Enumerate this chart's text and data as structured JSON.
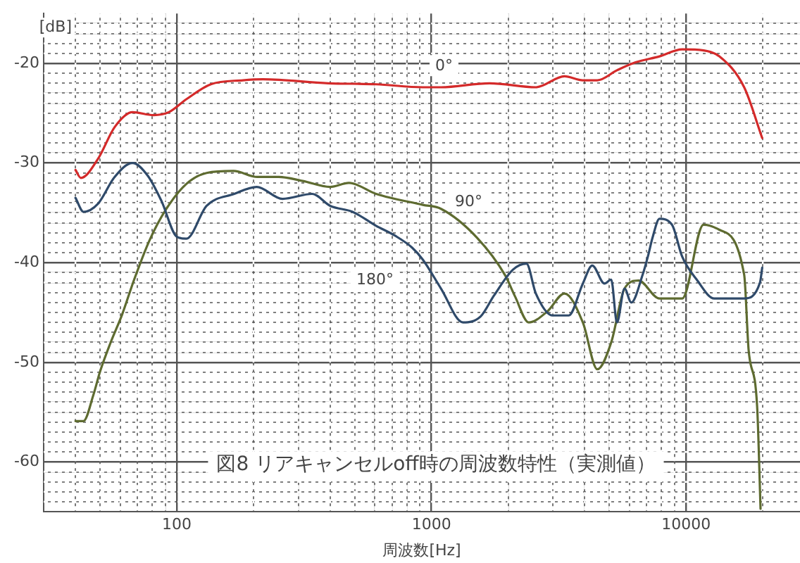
{
  "chart_data": {
    "type": "line",
    "title": "図8 リアキャンセルoff時の周波数特性（実測値）",
    "xlabel": "周波数[Hz]",
    "ylabel": "[dB]",
    "log": "x",
    "grid": true,
    "legend": false,
    "marker": "none",
    "line_style": "solid",
    "xlim": [
      30,
      28000
    ],
    "xticks": [
      {
        "value": 40,
        "label": null
      },
      {
        "value": 50,
        "label": null
      },
      {
        "value": 60,
        "label": null
      },
      {
        "value": 70,
        "label": null
      },
      {
        "value": 80,
        "label": null
      },
      {
        "value": 90,
        "label": null
      },
      100,
      {
        "value": 200,
        "label": null
      },
      {
        "value": 300,
        "label": null
      },
      {
        "value": 400,
        "label": null
      },
      {
        "value": 500,
        "label": null
      },
      {
        "value": 600,
        "label": null
      },
      {
        "value": 700,
        "label": null
      },
      {
        "value": 800,
        "label": null
      },
      {
        "value": 900,
        "label": null
      },
      1000,
      {
        "value": 2000,
        "label": null
      },
      {
        "value": 3000,
        "label": null
      },
      {
        "value": 4000,
        "label": null
      },
      {
        "value": 5000,
        "label": null
      },
      {
        "value": 6000,
        "label": null
      },
      {
        "value": 7000,
        "label": null
      },
      {
        "value": 8000,
        "label": null
      },
      {
        "value": 9000,
        "label": null
      },
      10000,
      {
        "value": 20000,
        "label": null
      }
    ],
    "ylim": [
      -65,
      -15
    ],
    "yticks": [
      {
        "value": -64,
        "label": null
      },
      {
        "value": -63,
        "label": null
      },
      {
        "value": -62,
        "label": null
      },
      {
        "value": -61,
        "label": null
      },
      -60,
      {
        "value": -59,
        "label": null
      },
      {
        "value": -58,
        "label": null
      },
      {
        "value": -57,
        "label": null
      },
      {
        "value": -56,
        "label": null
      },
      {
        "value": -55,
        "label": null
      },
      {
        "value": -54,
        "label": null
      },
      {
        "value": -53,
        "label": null
      },
      {
        "value": -52,
        "label": null
      },
      {
        "value": -51,
        "label": null
      },
      -50,
      {
        "value": -49,
        "label": null
      },
      {
        "value": -48,
        "label": null
      },
      {
        "value": -47,
        "label": null
      },
      {
        "value": -46,
        "label": null
      },
      {
        "value": -45,
        "label": null
      },
      {
        "value": -44,
        "label": null
      },
      {
        "value": -43,
        "label": null
      },
      {
        "value": -42,
        "label": null
      },
      {
        "value": -41,
        "label": null
      },
      -40,
      {
        "value": -39,
        "label": null
      },
      {
        "value": -38,
        "label": null
      },
      {
        "value": -37,
        "label": null
      },
      {
        "value": -36,
        "label": null
      },
      {
        "value": -35,
        "label": null
      },
      {
        "value": -34,
        "label": null
      },
      {
        "value": -33,
        "label": null
      },
      {
        "value": -32,
        "label": null
      },
      {
        "value": -31,
        "label": null
      },
      -30,
      {
        "value": -29,
        "label": null
      },
      {
        "value": -28,
        "label": null
      },
      {
        "value": -27,
        "label": null
      },
      {
        "value": -26,
        "label": null
      },
      {
        "value": -25,
        "label": null
      },
      {
        "value": -24,
        "label": null
      },
      {
        "value": -23,
        "label": null
      },
      {
        "value": -22,
        "label": null
      },
      {
        "value": -21,
        "label": null
      },
      -20,
      {
        "value": -19,
        "label": null
      },
      {
        "value": -18,
        "label": null
      },
      {
        "value": -17,
        "label": null
      },
      {
        "value": -16,
        "label": null
      }
    ],
    "annotations": [
      {
        "text": "0°",
        "x": 1120,
        "y": -20.3
      },
      {
        "text": "90°",
        "x": 1400,
        "y": -33.9
      },
      {
        "text": "180°",
        "x": 600,
        "y": -41.8
      }
    ],
    "series": [
      {
        "color": "#d42a2a",
        "x": [
          40,
          42,
          49,
          57,
          67,
          81,
          93,
          109,
          136,
          182,
          218,
          393,
          606,
          925,
          1090,
          1690,
          2570,
          3330,
          3930,
          4480,
          5350,
          6330,
          7860,
          9650,
          11700,
          13500,
          16900,
          19900
        ],
        "values": [
          -30.7,
          -31.5,
          -29.6,
          -26.4,
          -24.9,
          -25.2,
          -24.9,
          -23.6,
          -22.1,
          -21.7,
          -21.6,
          -22.0,
          -22.1,
          -22.4,
          -22.4,
          -22.0,
          -22.4,
          -21.3,
          -21.7,
          -21.7,
          -20.7,
          -19.9,
          -19.3,
          -18.6,
          -18.7,
          -19.3,
          -22.4,
          -27.5
        ]
      },
      {
        "color": "#2f4a6a",
        "x": [
          40,
          43,
          49,
          57,
          67,
          77,
          87,
          100,
          109,
          131,
          168,
          206,
          260,
          340,
          400,
          490,
          606,
          720,
          840,
          925,
          1090,
          1330,
          1560,
          1760,
          2090,
          2360,
          2570,
          2990,
          3460,
          3930,
          4280,
          4780,
          5080,
          5350,
          5730,
          6090,
          6750,
          7090,
          7380,
          7860,
          8800,
          9650,
          11000,
          12900,
          16900,
          19500,
          19900
        ],
        "values": [
          -33.5,
          -34.9,
          -34.1,
          -31.4,
          -30.0,
          -31.3,
          -33.8,
          -37.4,
          -37.6,
          -34.3,
          -33.1,
          -32.4,
          -33.6,
          -33.1,
          -34.3,
          -34.9,
          -36.3,
          -37.3,
          -38.5,
          -39.7,
          -42.6,
          -46.0,
          -45.4,
          -43.3,
          -40.7,
          -40.1,
          -43.1,
          -45.3,
          -45.3,
          -42.1,
          -40.3,
          -42.1,
          -41.7,
          -46.0,
          -42.6,
          -44.0,
          -41.2,
          -39.3,
          -37.5,
          -35.6,
          -36.2,
          -39.4,
          -41.7,
          -43.6,
          -43.6,
          -42.0,
          -40.5
        ]
      },
      {
        "color": "#5e6b30",
        "x": [
          40,
          43,
          47,
          50,
          55,
          61,
          68,
          78,
          91,
          109,
          131,
          167,
          207,
          251,
          312,
          400,
          474,
          606,
          925,
          1090,
          1510,
          1950,
          2130,
          2410,
          2850,
          3330,
          3930,
          4480,
          5080,
          5730,
          6500,
          7860,
          9650,
          11700,
          13500,
          16900,
          17600,
          19000,
          19600
        ],
        "values": [
          -55.9,
          -55.9,
          -53.3,
          -50.9,
          -48.0,
          -45.2,
          -41.7,
          -37.8,
          -34.6,
          -32.1,
          -31.0,
          -30.8,
          -31.4,
          -31.4,
          -31.8,
          -32.4,
          -32.0,
          -33.1,
          -34.2,
          -34.6,
          -37.5,
          -41.3,
          -43.4,
          -46.0,
          -44.9,
          -43.1,
          -46.0,
          -50.7,
          -48.0,
          -42.6,
          -41.8,
          -43.6,
          -43.6,
          -36.2,
          -36.7,
          -41.2,
          -48.8,
          -54.4,
          -64.7
        ]
      }
    ]
  }
}
